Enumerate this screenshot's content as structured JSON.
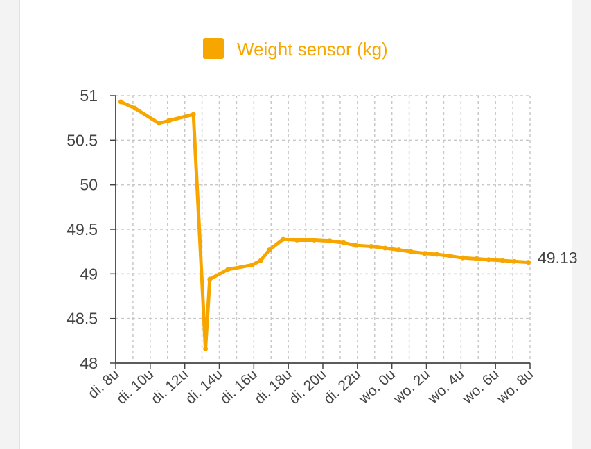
{
  "chart_data": {
    "type": "line",
    "legend": {
      "label": "Weight sensor (kg)",
      "placement": "top-center"
    },
    "title": "",
    "xlabel": "",
    "ylabel": "",
    "colors": {
      "series": "#F7A600",
      "grid": "#c8c8c8",
      "axis": "#444444",
      "text": "#444444"
    },
    "grid": true,
    "ylim": [
      48,
      51
    ],
    "y_ticks": [
      "51",
      "50.5",
      "50",
      "49.5",
      "49",
      "48.5",
      "48"
    ],
    "x_ticks": [
      "di. 8u",
      "di. 10u",
      "di. 12u",
      "di. 14u",
      "di. 16u",
      "di. 18u",
      "di. 20u",
      "di. 22u",
      "wo. 0u",
      "wo. 2u",
      "wo. 4u",
      "wo. 6u",
      "wo. 8u"
    ],
    "x_range_hours": [
      8,
      32
    ],
    "last_value_label": "49.13",
    "series": [
      {
        "name": "Weight sensor (kg)",
        "x_hours": [
          8.3,
          9.1,
          10.5,
          11.1,
          12.5,
          13.2,
          13.45,
          14.5,
          15.9,
          16.4,
          16.9,
          17.7,
          18.5,
          19.5,
          20.4,
          21.2,
          21.9,
          22.8,
          23.6,
          24.4,
          25.1,
          25.9,
          26.6,
          27.4,
          28.1,
          28.9,
          29.6,
          30.4,
          31.1,
          31.9
        ],
        "values": [
          50.93,
          50.86,
          50.69,
          50.72,
          50.79,
          48.16,
          48.94,
          49.05,
          49.1,
          49.15,
          49.27,
          49.39,
          49.38,
          49.38,
          49.37,
          49.35,
          49.32,
          49.31,
          49.29,
          49.27,
          49.25,
          49.23,
          49.22,
          49.2,
          49.18,
          49.17,
          49.16,
          49.15,
          49.14,
          49.13
        ]
      }
    ]
  }
}
